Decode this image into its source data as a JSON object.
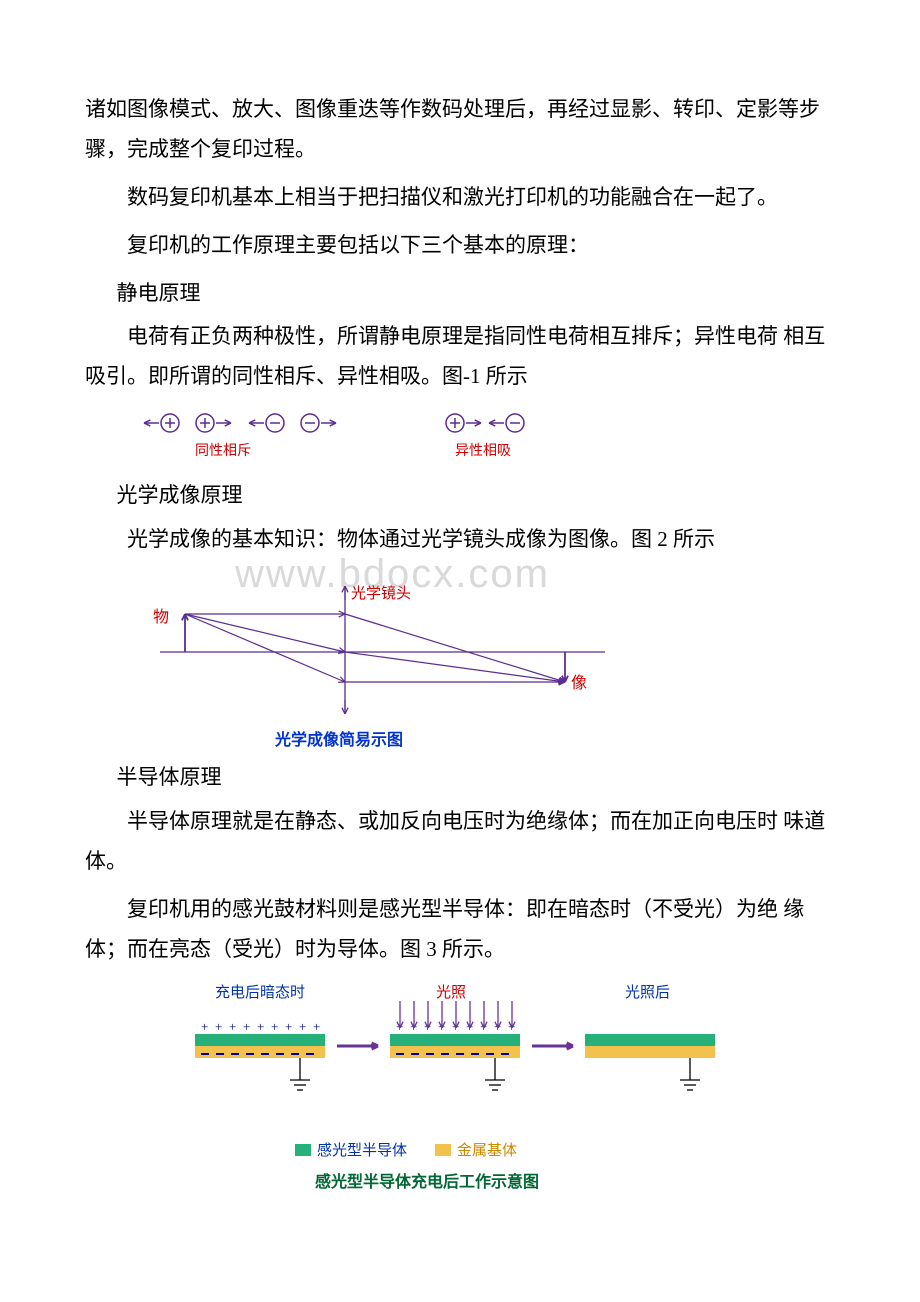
{
  "paragraphs": {
    "p1": "诸如图像模式、放大、图像重迭等作数码处理后，再经过显影、转印、定影等步骤，完成整个复印过程。",
    "p2": "数码复印机基本上相当于把扫描仪和激光打印机的功能融合在一起了。",
    "p3": "复印机的工作原理主要包括以下三个基本的原理：",
    "s1": "静电原理",
    "p4": "电荷有正负两种极性，所谓静电原理是指同性电荷相互排斥；异性电荷 相互吸引。即所谓的同性相斥、异性相吸。图-1 所示",
    "s2": "光学成像原理",
    "p5": "光学成像的基本知识：物体通过光学镜头成像为图像。图 2 所示",
    "s3": "半导体原理",
    "p6": "半导体原理就是在静态、或加反向电压时为绝缘体；而在加正向电压时 味道体。",
    "p7": "复印机用的感光鼓材料则是感光型半导体：即在暗态时（不受光）为绝 缘体；而在亮态（受光）时为导体。图 3 所示。"
  },
  "watermark": "www.bdocx.com",
  "fig1": {
    "stroke": "#5b2c91",
    "caption_color": "#cc0000",
    "caption_left": "同性相斥",
    "caption_right": "异性相吸",
    "circle_r": 9
  },
  "fig2": {
    "stroke": "#5b2c91",
    "label_wu": "物",
    "label_xiang": "像",
    "label_lens": "光学镜头",
    "caption": "光学成像简易示图",
    "label_color": "#cc0000",
    "caption_color": "#0033cc"
  },
  "fig3": {
    "labels": {
      "left": "充电后暗态时",
      "mid": "光照",
      "right": "光照后"
    },
    "label_color": "#0033aa",
    "mid_color": "#cc0000",
    "arrow_color": "#663399",
    "plus_color": "#000080",
    "layer_top_color": "#26b07a",
    "layer_bot_color": "#f2c14e",
    "dash_color": "#000080",
    "line_color": "#000000",
    "legend": {
      "semiconductor": "感光型半导体",
      "metal": "金属基体"
    },
    "legend_semi_color": "#26b07a",
    "legend_metal_color": "#f2c14e",
    "legend_text_color_semi": "#0033aa",
    "legend_text_color_metal": "#cc8800",
    "caption": "感光型半导体充电后工作示意图",
    "caption_color": "#006633"
  }
}
